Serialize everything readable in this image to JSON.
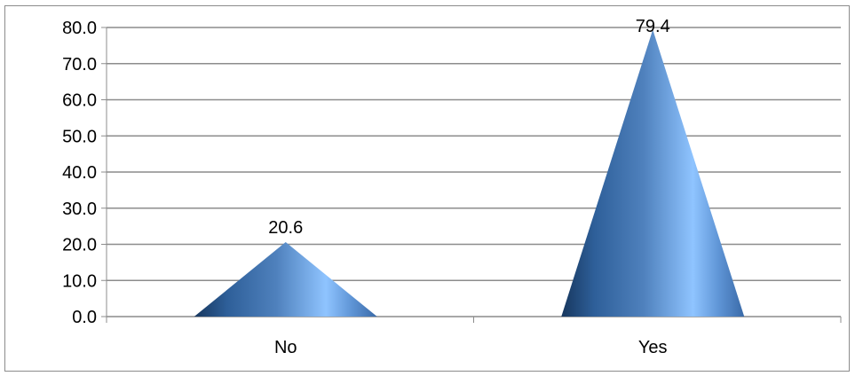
{
  "chart_data": {
    "type": "bar",
    "categories": [
      "No",
      "Yes"
    ],
    "values": [
      20.6,
      79.4
    ],
    "data_labels": [
      "20.6",
      "79.4"
    ],
    "y_ticks": [
      "0.0",
      "10.0",
      "20.0",
      "30.0",
      "40.0",
      "50.0",
      "60.0",
      "70.0",
      "80.0"
    ],
    "ylim": [
      0,
      80
    ],
    "grid": true,
    "legend": "none",
    "mark_shape": "cone",
    "title": "",
    "xlabel": "",
    "ylabel": "",
    "colors": {
      "series_base": "#4f81bd",
      "gridline": "#8c8c8c",
      "axis": "#8c8c8c"
    }
  }
}
